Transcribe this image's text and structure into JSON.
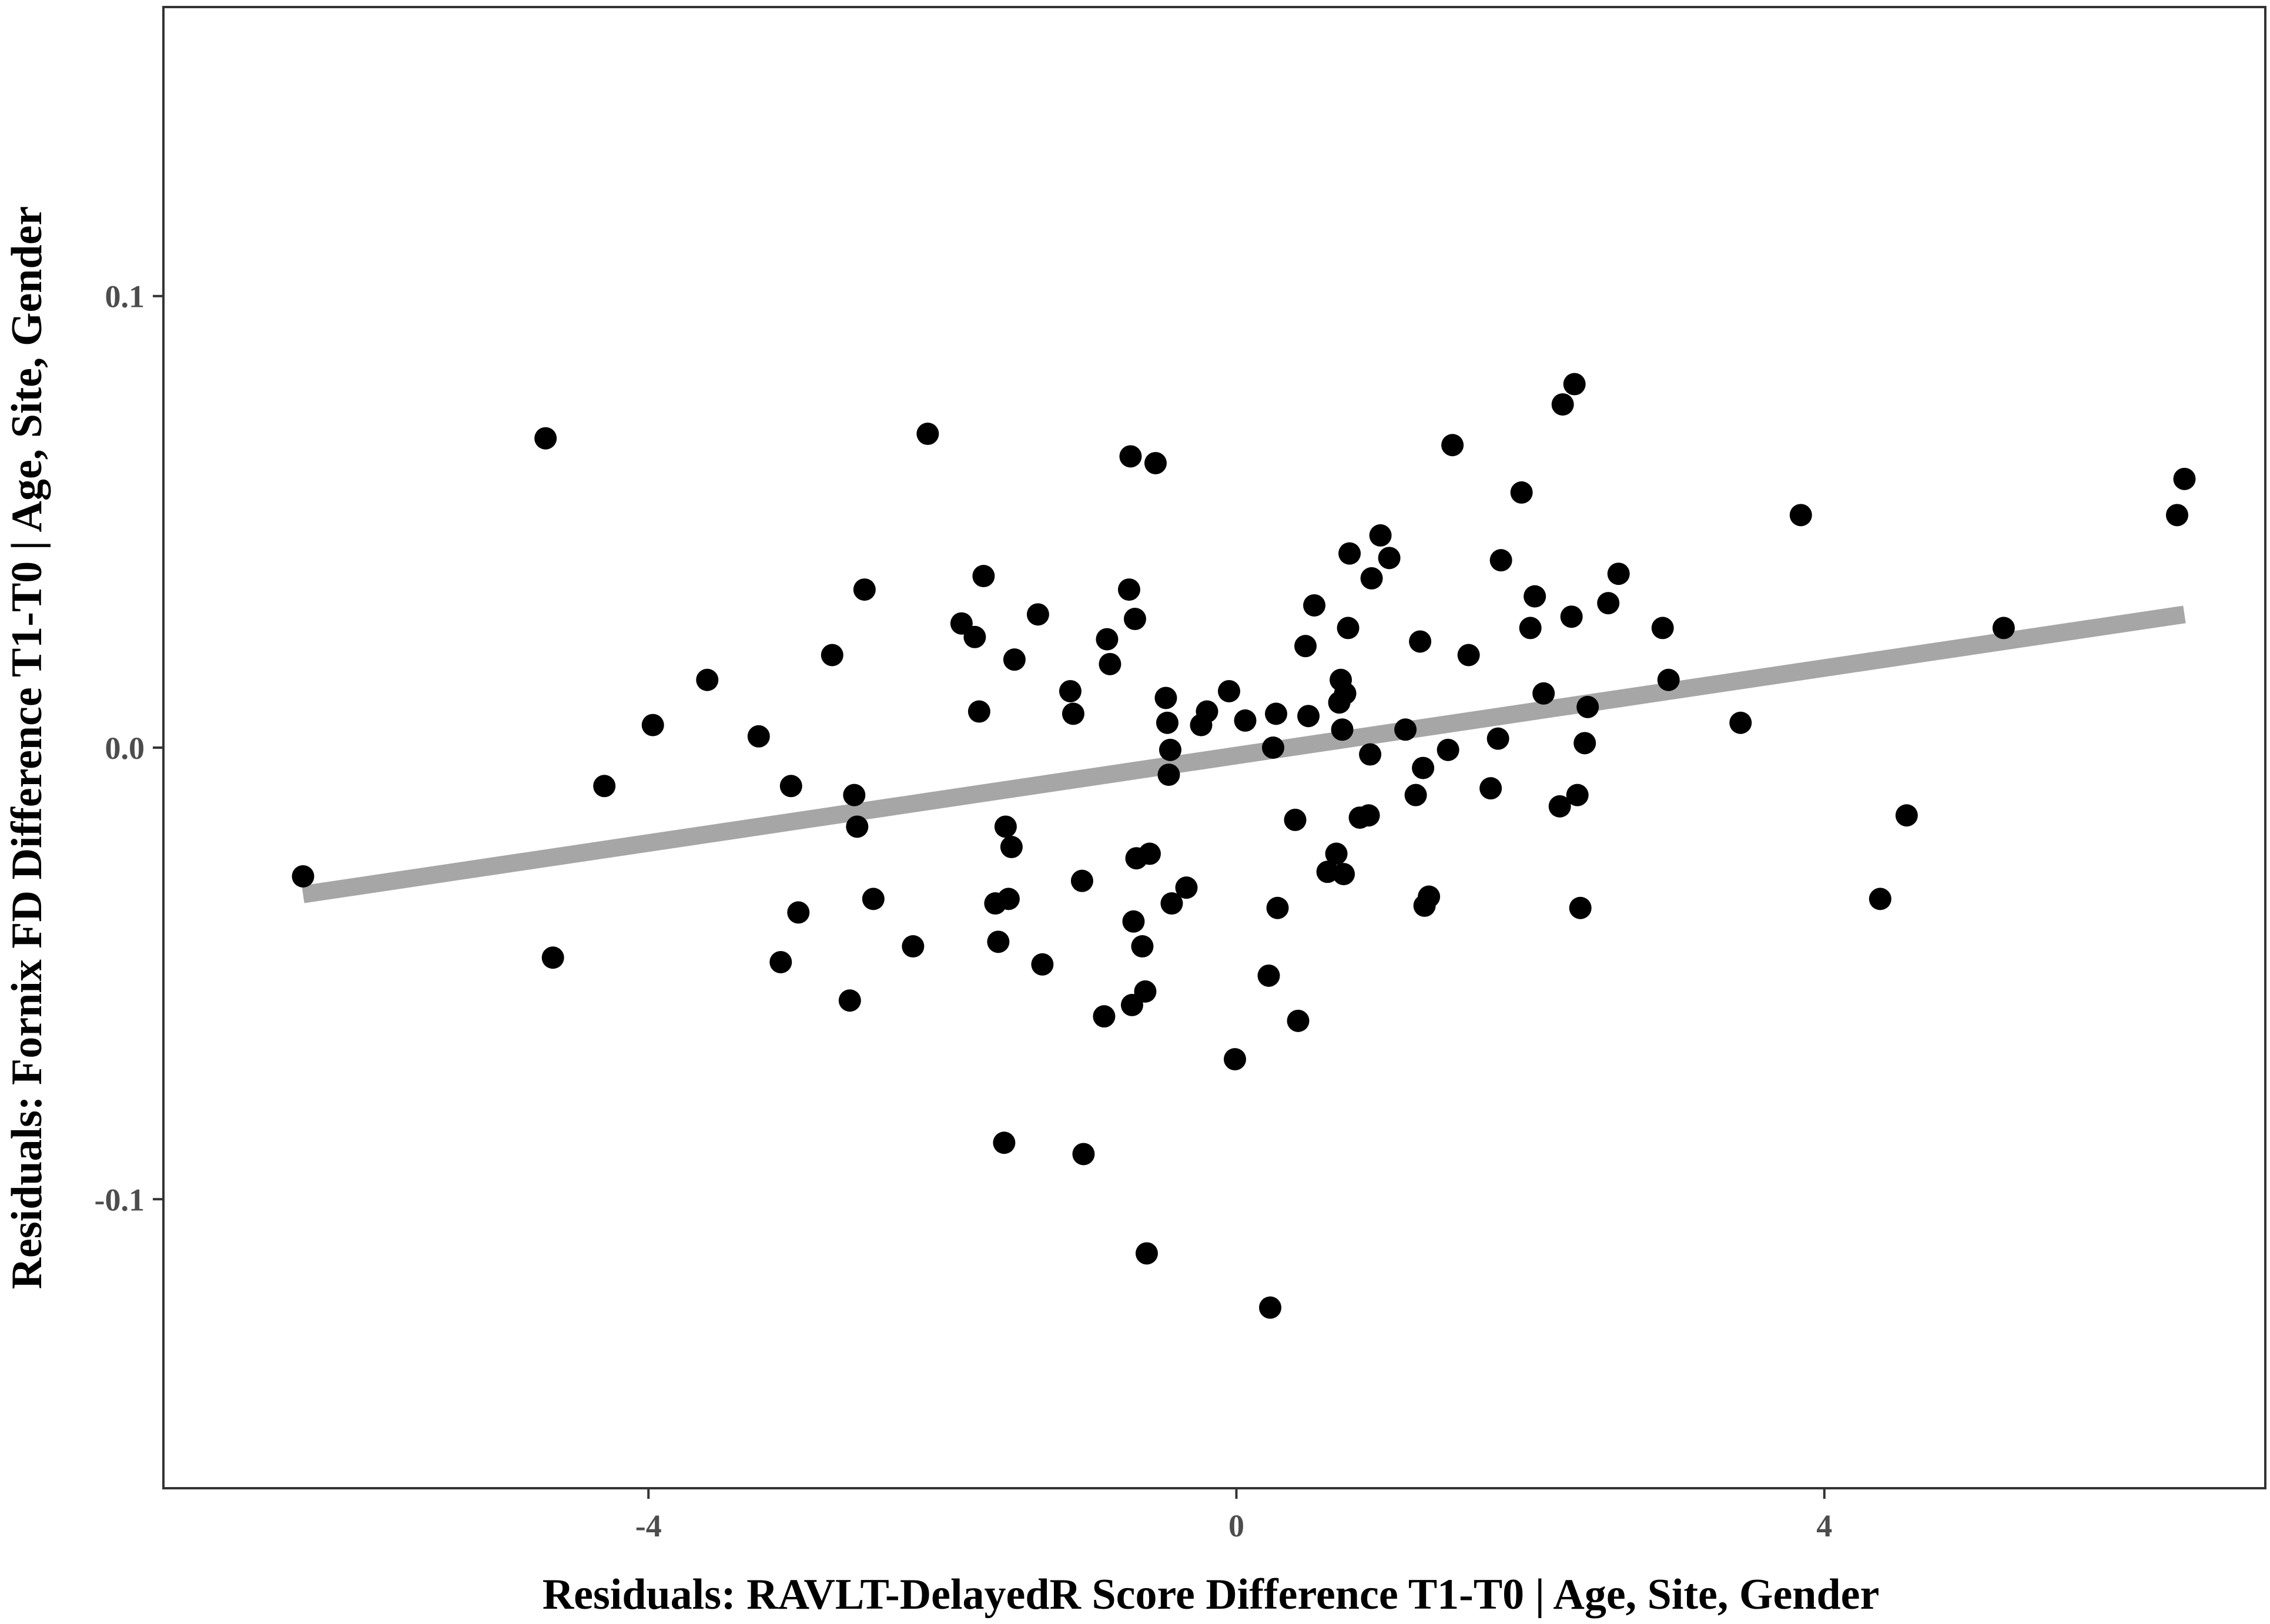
{
  "chart_data": {
    "type": "scatter",
    "xlabel": "Residuals: RAVLT-DelayedR Score Difference T1-T0 | Age, Site, Gender",
    "ylabel": "Residuals: Fornix FD Difference T1-T0 | Age, Site, Gender",
    "xlim": [
      -7.3,
      7.0
    ],
    "ylim": [
      -0.164,
      0.164
    ],
    "xticks": [
      {
        "value": -4,
        "label": "-4"
      },
      {
        "value": 0,
        "label": "0"
      },
      {
        "value": 4,
        "label": "4"
      }
    ],
    "yticks": [
      {
        "value": 0.1,
        "label": "0.1"
      },
      {
        "value": 0.0,
        "label": "0.0"
      },
      {
        "value": -0.1,
        "label": "-0.1"
      }
    ],
    "grid": false,
    "legend": "none",
    "colors": {
      "points": "#000000",
      "fit_line": "#a6a6a6",
      "frame": "#333333"
    },
    "fit_line": {
      "x": [
        -6.35,
        6.45
      ],
      "y": [
        -0.0325,
        0.0295
      ]
    },
    "points": [
      {
        "x": -6.35,
        "y": -0.0285
      },
      {
        "x": -4.7,
        "y": 0.0685
      },
      {
        "x": -4.65,
        "y": -0.0465
      },
      {
        "x": -4.3,
        "y": -0.0085
      },
      {
        "x": -3.97,
        "y": 0.005
      },
      {
        "x": -3.6,
        "y": 0.015
      },
      {
        "x": -3.25,
        "y": 0.0025
      },
      {
        "x": -3.1,
        "y": -0.0475
      },
      {
        "x": -3.03,
        "y": -0.0085
      },
      {
        "x": -2.98,
        "y": -0.0365
      },
      {
        "x": -2.75,
        "y": 0.0205
      },
      {
        "x": -2.63,
        "y": -0.056
      },
      {
        "x": -2.6,
        "y": -0.0105
      },
      {
        "x": -2.58,
        "y": -0.0175
      },
      {
        "x": -2.53,
        "y": 0.035
      },
      {
        "x": -2.47,
        "y": -0.0335
      },
      {
        "x": -2.2,
        "y": -0.044
      },
      {
        "x": -2.1,
        "y": 0.0695
      },
      {
        "x": -1.87,
        "y": 0.0275
      },
      {
        "x": -1.78,
        "y": 0.0245
      },
      {
        "x": -1.75,
        "y": 0.008
      },
      {
        "x": -1.72,
        "y": 0.038
      },
      {
        "x": -1.64,
        "y": -0.0345
      },
      {
        "x": -1.62,
        "y": -0.043
      },
      {
        "x": -1.58,
        "y": -0.0875
      },
      {
        "x": -1.57,
        "y": -0.0175
      },
      {
        "x": -1.55,
        "y": -0.0335
      },
      {
        "x": -1.53,
        "y": -0.022
      },
      {
        "x": -1.51,
        "y": 0.0195
      },
      {
        "x": -1.35,
        "y": 0.0295
      },
      {
        "x": -1.32,
        "y": -0.048
      },
      {
        "x": -1.13,
        "y": 0.0125
      },
      {
        "x": -1.11,
        "y": 0.0075
      },
      {
        "x": -1.05,
        "y": -0.0295
      },
      {
        "x": -1.04,
        "y": -0.09
      },
      {
        "x": -0.9,
        "y": -0.0595
      },
      {
        "x": -0.88,
        "y": 0.024
      },
      {
        "x": -0.86,
        "y": 0.0185
      },
      {
        "x": -0.73,
        "y": 0.035
      },
      {
        "x": -0.72,
        "y": 0.0645
      },
      {
        "x": -0.71,
        "y": -0.057
      },
      {
        "x": -0.7,
        "y": -0.0385
      },
      {
        "x": -0.69,
        "y": 0.0285
      },
      {
        "x": -0.68,
        "y": -0.0245
      },
      {
        "x": -0.64,
        "y": -0.044
      },
      {
        "x": -0.62,
        "y": -0.054
      },
      {
        "x": -0.61,
        "y": -0.112
      },
      {
        "x": -0.59,
        "y": -0.0235
      },
      {
        "x": -0.55,
        "y": 0.063
      },
      {
        "x": -0.48,
        "y": 0.011
      },
      {
        "x": -0.47,
        "y": 0.0055
      },
      {
        "x": -0.46,
        "y": -0.006
      },
      {
        "x": -0.45,
        "y": -0.0005
      },
      {
        "x": -0.44,
        "y": -0.0345
      },
      {
        "x": -0.34,
        "y": -0.031
      },
      {
        "x": -0.24,
        "y": 0.005
      },
      {
        "x": -0.2,
        "y": 0.008
      },
      {
        "x": -0.05,
        "y": 0.0125
      },
      {
        "x": -0.01,
        "y": -0.069
      },
      {
        "x": 0.06,
        "y": 0.006
      },
      {
        "x": 0.22,
        "y": -0.0505
      },
      {
        "x": 0.23,
        "y": -0.124
      },
      {
        "x": 0.25,
        "y": 0.0
      },
      {
        "x": 0.27,
        "y": 0.0075
      },
      {
        "x": 0.28,
        "y": -0.0355
      },
      {
        "x": 0.4,
        "y": -0.016
      },
      {
        "x": 0.42,
        "y": -0.0605
      },
      {
        "x": 0.47,
        "y": 0.0225
      },
      {
        "x": 0.49,
        "y": 0.007
      },
      {
        "x": 0.53,
        "y": 0.0315
      },
      {
        "x": 0.62,
        "y": -0.0275
      },
      {
        "x": 0.68,
        "y": -0.0235
      },
      {
        "x": 0.7,
        "y": 0.01
      },
      {
        "x": 0.71,
        "y": 0.015
      },
      {
        "x": 0.72,
        "y": 0.004
      },
      {
        "x": 0.73,
        "y": -0.028
      },
      {
        "x": 0.74,
        "y": 0.012
      },
      {
        "x": 0.76,
        "y": 0.0265
      },
      {
        "x": 0.77,
        "y": 0.043
      },
      {
        "x": 0.84,
        "y": -0.0155
      },
      {
        "x": 0.9,
        "y": -0.015
      },
      {
        "x": 0.91,
        "y": -0.0015
      },
      {
        "x": 0.92,
        "y": 0.0375
      },
      {
        "x": 0.98,
        "y": 0.047
      },
      {
        "x": 1.04,
        "y": 0.042
      },
      {
        "x": 1.15,
        "y": 0.004
      },
      {
        "x": 1.22,
        "y": -0.0105
      },
      {
        "x": 1.25,
        "y": 0.0235
      },
      {
        "x": 1.27,
        "y": -0.0045
      },
      {
        "x": 1.28,
        "y": -0.035
      },
      {
        "x": 1.31,
        "y": -0.033
      },
      {
        "x": 1.44,
        "y": -0.0005
      },
      {
        "x": 1.47,
        "y": 0.067
      },
      {
        "x": 1.58,
        "y": 0.0205
      },
      {
        "x": 1.73,
        "y": -0.009
      },
      {
        "x": 1.78,
        "y": 0.002
      },
      {
        "x": 1.8,
        "y": 0.0415
      },
      {
        "x": 1.94,
        "y": 0.0565
      },
      {
        "x": 2.0,
        "y": 0.0265
      },
      {
        "x": 2.03,
        "y": 0.0335
      },
      {
        "x": 2.09,
        "y": 0.012
      },
      {
        "x": 2.2,
        "y": -0.013
      },
      {
        "x": 2.22,
        "y": 0.076
      },
      {
        "x": 2.28,
        "y": 0.029
      },
      {
        "x": 2.3,
        "y": 0.0805
      },
      {
        "x": 2.32,
        "y": -0.0105
      },
      {
        "x": 2.34,
        "y": -0.0355
      },
      {
        "x": 2.37,
        "y": 0.001
      },
      {
        "x": 2.39,
        "y": 0.009
      },
      {
        "x": 2.53,
        "y": 0.032
      },
      {
        "x": 2.6,
        "y": 0.0385
      },
      {
        "x": 2.9,
        "y": 0.0265
      },
      {
        "x": 2.94,
        "y": 0.015
      },
      {
        "x": 3.43,
        "y": 0.0055
      },
      {
        "x": 3.84,
        "y": 0.0515
      },
      {
        "x": 4.38,
        "y": -0.0335
      },
      {
        "x": 4.56,
        "y": -0.015
      },
      {
        "x": 5.22,
        "y": 0.0265
      },
      {
        "x": 6.4,
        "y": 0.0515
      },
      {
        "x": 6.45,
        "y": 0.0595
      }
    ]
  }
}
